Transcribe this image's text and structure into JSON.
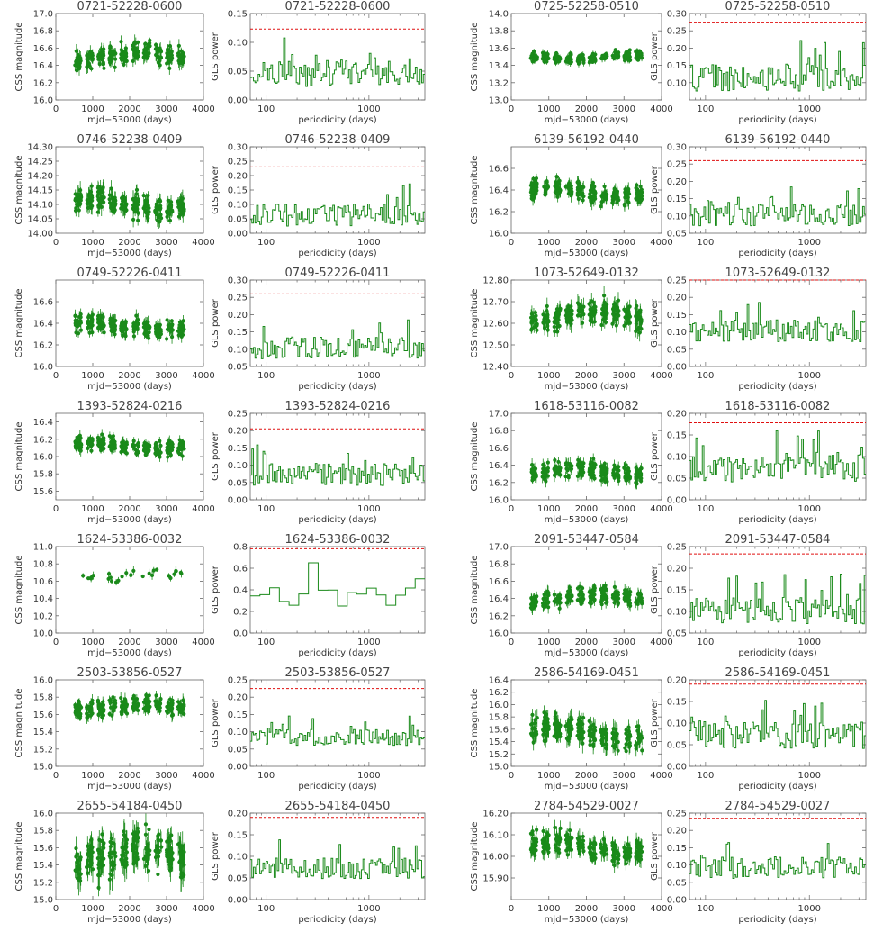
{
  "figure": {
    "lc_xlabel": "mjd−53000 (days)",
    "lc_ylabel": "CSS magnitude",
    "gls_xlabel": "periodicity (days)",
    "gls_ylabel": "GLS power",
    "data_color": "#1a8a1a",
    "threshold_color": "#e01010"
  },
  "chart_data": [
    {
      "id": "0721-52228-0600",
      "lightcurve": {
        "title": "0721-52228-0600",
        "type": "scatter",
        "xlim": [
          0,
          4000
        ],
        "xticks": [
          0,
          1000,
          2000,
          3000,
          4000
        ],
        "ylim": [
          16.0,
          17.0
        ],
        "yticks": [
          16.0,
          16.2,
          16.4,
          16.6,
          16.8,
          17.0
        ],
        "center": 16.5,
        "spread": 0.08
      },
      "periodogram": {
        "title": "0721-52228-0600",
        "type": "line",
        "xscale": "log",
        "xlim": [
          70,
          3500
        ],
        "xticks": [
          100,
          1000
        ],
        "ylim": [
          0,
          0.15
        ],
        "yticks": [
          0.0,
          0.05,
          0.1,
          0.15
        ],
        "threshold": 0.123,
        "base": 0.045,
        "amp": 0.03
      }
    },
    {
      "id": "0725-52258-0510",
      "lightcurve": {
        "title": "0725-52258-0510",
        "type": "scatter",
        "xlim": [
          0,
          4000
        ],
        "xticks": [
          0,
          1000,
          2000,
          3000,
          4000
        ],
        "ylim": [
          13.0,
          14.0
        ],
        "yticks": [
          13.0,
          13.2,
          13.4,
          13.6,
          13.8,
          14.0
        ],
        "center": 13.5,
        "spread": 0.04
      },
      "periodogram": {
        "title": "0725-52258-0510",
        "type": "line",
        "xscale": "log",
        "xlim": [
          70,
          3500
        ],
        "xticks": [
          100,
          1000
        ],
        "ylim": [
          0.05,
          0.3
        ],
        "yticks": [
          0.1,
          0.15,
          0.2,
          0.25,
          0.3
        ],
        "threshold": 0.275,
        "base": 0.11,
        "amp": 0.05
      }
    },
    {
      "id": "0746-52238-0409",
      "lightcurve": {
        "title": "0746-52238-0409",
        "type": "scatter",
        "xlim": [
          0,
          4000
        ],
        "xticks": [
          0,
          1000,
          2000,
          3000,
          4000
        ],
        "ylim": [
          14.0,
          14.3
        ],
        "yticks": [
          14.0,
          14.05,
          14.1,
          14.15,
          14.2,
          14.25,
          14.3
        ],
        "center": 14.1,
        "spread": 0.03
      },
      "periodogram": {
        "title": "0746-52238-0409",
        "type": "line",
        "xscale": "log",
        "xlim": [
          70,
          3500
        ],
        "xticks": [
          100,
          1000
        ],
        "ylim": [
          0,
          0.3
        ],
        "yticks": [
          0.0,
          0.05,
          0.1,
          0.15,
          0.2,
          0.25,
          0.3
        ],
        "threshold": 0.23,
        "base": 0.06,
        "amp": 0.05
      }
    },
    {
      "id": "6139-56192-0440",
      "lightcurve": {
        "title": "6139-56192-0440",
        "type": "scatter",
        "xlim": [
          0,
          4000
        ],
        "xticks": [
          0,
          1000,
          2000,
          3000,
          4000
        ],
        "ylim": [
          16.0,
          16.8
        ],
        "yticks": [
          16.0,
          16.2,
          16.4,
          16.6
        ],
        "center": 16.38,
        "spread": 0.06
      },
      "periodogram": {
        "title": "6139-56192-0440",
        "type": "line",
        "xscale": "log",
        "xlim": [
          70,
          3500
        ],
        "xticks": [
          100,
          1000
        ],
        "ylim": [
          0.05,
          0.3
        ],
        "yticks": [
          0.05,
          0.1,
          0.15,
          0.2,
          0.25,
          0.3
        ],
        "threshold": 0.26,
        "base": 0.1,
        "amp": 0.04
      }
    },
    {
      "id": "0749-52226-0411",
      "lightcurve": {
        "title": "0749-52226-0411",
        "type": "scatter",
        "xlim": [
          0,
          4000
        ],
        "xticks": [
          0,
          1000,
          2000,
          3000,
          4000
        ],
        "ylim": [
          16.0,
          16.8
        ],
        "yticks": [
          16.0,
          16.2,
          16.4,
          16.6
        ],
        "center": 16.37,
        "spread": 0.06
      },
      "periodogram": {
        "title": "0749-52226-0411",
        "type": "line",
        "xscale": "log",
        "xlim": [
          70,
          3500
        ],
        "xticks": [
          100,
          1000
        ],
        "ylim": [
          0.05,
          0.3
        ],
        "yticks": [
          0.05,
          0.1,
          0.15,
          0.2,
          0.25,
          0.3
        ],
        "threshold": 0.26,
        "base": 0.1,
        "amp": 0.04
      }
    },
    {
      "id": "1073-52649-0132",
      "lightcurve": {
        "title": "1073-52649-0132",
        "type": "scatter",
        "xlim": [
          0,
          4000
        ],
        "xticks": [
          0,
          1000,
          2000,
          3000,
          4000
        ],
        "ylim": [
          12.4,
          12.8
        ],
        "yticks": [
          12.4,
          12.5,
          12.6,
          12.7,
          12.8
        ],
        "center": 12.63,
        "spread": 0.04
      },
      "periodogram": {
        "title": "1073-52649-0132",
        "type": "line",
        "xscale": "log",
        "xlim": [
          70,
          3500
        ],
        "xticks": [
          100,
          1000
        ],
        "ylim": [
          0,
          0.25
        ],
        "yticks": [
          0.0,
          0.05,
          0.1,
          0.15,
          0.2,
          0.25
        ],
        "threshold": 0.25,
        "base": 0.1,
        "amp": 0.04
      }
    },
    {
      "id": "1393-52824-0216",
      "lightcurve": {
        "title": "1393-52824-0216",
        "type": "scatter",
        "xlim": [
          0,
          4000
        ],
        "xticks": [
          0,
          1000,
          2000,
          3000,
          4000
        ],
        "ylim": [
          15.5,
          16.5
        ],
        "yticks": [
          15.6,
          15.8,
          16.0,
          16.2,
          16.4
        ],
        "center": 16.12,
        "spread": 0.06
      },
      "periodogram": {
        "title": "1393-52824-0216",
        "type": "line",
        "xscale": "log",
        "xlim": [
          70,
          3500
        ],
        "xticks": [
          100,
          1000
        ],
        "ylim": [
          0,
          0.25
        ],
        "yticks": [
          0.0,
          0.05,
          0.1,
          0.15,
          0.2,
          0.25
        ],
        "threshold": 0.205,
        "base": 0.07,
        "amp": 0.04
      }
    },
    {
      "id": "1618-53116-0082",
      "lightcurve": {
        "title": "1618-53116-0082",
        "type": "scatter",
        "xlim": [
          0,
          4000
        ],
        "xticks": [
          0,
          1000,
          2000,
          3000,
          4000
        ],
        "ylim": [
          16.0,
          17.0
        ],
        "yticks": [
          16.0,
          16.2,
          16.4,
          16.6,
          16.8,
          17.0
        ],
        "center": 16.32,
        "spread": 0.07
      },
      "periodogram": {
        "title": "1618-53116-0082",
        "type": "line",
        "xscale": "log",
        "xlim": [
          70,
          3500
        ],
        "xticks": [
          100,
          1000
        ],
        "ylim": [
          0,
          0.2
        ],
        "yticks": [
          0.0,
          0.05,
          0.1,
          0.15,
          0.2
        ],
        "threshold": 0.178,
        "base": 0.07,
        "amp": 0.04
      }
    },
    {
      "id": "1624-53386-0032",
      "lightcurve": {
        "title": "1624-53386-0032",
        "type": "scatter",
        "xlim": [
          0,
          4000
        ],
        "xticks": [
          0,
          1000,
          2000,
          3000,
          4000
        ],
        "ylim": [
          10.0,
          11.0
        ],
        "yticks": [
          10.0,
          10.2,
          10.4,
          10.6,
          10.8,
          11.0
        ],
        "center": 10.66,
        "spread": 0.05,
        "sparse": true
      },
      "periodogram": {
        "title": "1624-53386-0032",
        "type": "line",
        "xscale": "log",
        "xlim": [
          70,
          3500
        ],
        "xticks": [
          100,
          1000
        ],
        "ylim": [
          0,
          0.8
        ],
        "yticks": [
          0.0,
          0.2,
          0.4,
          0.6,
          0.8
        ],
        "threshold": 0.78,
        "base": 0.32,
        "amp": 0.12,
        "coarse": true
      }
    },
    {
      "id": "2091-53447-0584",
      "lightcurve": {
        "title": "2091-53447-0584",
        "type": "scatter",
        "xlim": [
          0,
          4000
        ],
        "xticks": [
          0,
          1000,
          2000,
          3000,
          4000
        ],
        "ylim": [
          16.0,
          17.0
        ],
        "yticks": [
          16.0,
          16.2,
          16.4,
          16.6,
          16.8,
          17.0
        ],
        "center": 16.4,
        "spread": 0.07
      },
      "periodogram": {
        "title": "2091-53447-0584",
        "type": "line",
        "xscale": "log",
        "xlim": [
          70,
          3500
        ],
        "xticks": [
          100,
          1000
        ],
        "ylim": [
          0.05,
          0.25
        ],
        "yticks": [
          0.05,
          0.1,
          0.15,
          0.2,
          0.25
        ],
        "threshold": 0.233,
        "base": 0.1,
        "amp": 0.04
      }
    },
    {
      "id": "2503-53856-0527",
      "lightcurve": {
        "title": "2503-53856-0527",
        "type": "scatter",
        "xlim": [
          0,
          4000
        ],
        "xticks": [
          0,
          1000,
          2000,
          3000,
          4000
        ],
        "ylim": [
          15.0,
          16.0
        ],
        "yticks": [
          15.0,
          15.2,
          15.4,
          15.6,
          15.8,
          16.0
        ],
        "center": 15.68,
        "spread": 0.07
      },
      "periodogram": {
        "title": "2503-53856-0527",
        "type": "line",
        "xscale": "log",
        "xlim": [
          70,
          3500
        ],
        "xticks": [
          100,
          1000
        ],
        "ylim": [
          0,
          0.25
        ],
        "yticks": [
          0.0,
          0.05,
          0.1,
          0.15,
          0.2,
          0.25
        ],
        "threshold": 0.225,
        "base": 0.08,
        "amp": 0.03
      }
    },
    {
      "id": "2586-54169-0451",
      "lightcurve": {
        "title": "2586-54169-0451",
        "type": "scatter",
        "xlim": [
          0,
          4000
        ],
        "xticks": [
          0,
          1000,
          2000,
          3000,
          4000
        ],
        "ylim": [
          15.0,
          16.4
        ],
        "yticks": [
          15.0,
          15.2,
          15.4,
          15.6,
          15.8,
          16.0,
          16.2,
          16.4
        ],
        "center": 15.55,
        "spread": 0.15
      },
      "periodogram": {
        "title": "2586-54169-0451",
        "type": "line",
        "xscale": "log",
        "xlim": [
          70,
          3500
        ],
        "xticks": [
          100,
          1000
        ],
        "ylim": [
          0,
          0.2
        ],
        "yticks": [
          0.0,
          0.05,
          0.1,
          0.15,
          0.2
        ],
        "threshold": 0.19,
        "base": 0.07,
        "amp": 0.04
      }
    },
    {
      "id": "2655-54184-0450",
      "lightcurve": {
        "title": "2655-54184-0450",
        "type": "scatter",
        "xlim": [
          0,
          4000
        ],
        "xticks": [
          0,
          1000,
          2000,
          3000,
          4000
        ],
        "ylim": [
          15.0,
          16.0
        ],
        "yticks": [
          15.0,
          15.2,
          15.4,
          15.6,
          15.8,
          16.0
        ],
        "center": 15.5,
        "spread": 0.17
      },
      "periodogram": {
        "title": "2655-54184-0450",
        "type": "line",
        "xscale": "log",
        "xlim": [
          70,
          3500
        ],
        "xticks": [
          100,
          1000
        ],
        "ylim": [
          0,
          0.2
        ],
        "yticks": [
          0.0,
          0.05,
          0.1,
          0.15,
          0.2
        ],
        "threshold": 0.19,
        "base": 0.07,
        "amp": 0.03
      }
    },
    {
      "id": "2784-54529-0027",
      "lightcurve": {
        "title": "2784-54529-0027",
        "type": "scatter",
        "xlim": [
          0,
          4000
        ],
        "xticks": [
          0,
          1000,
          2000,
          3000,
          4000
        ],
        "ylim": [
          15.8,
          16.2
        ],
        "yticks": [
          15.9,
          16.0,
          16.1,
          16.2
        ],
        "center": 16.04,
        "spread": 0.04
      },
      "periodogram": {
        "title": "2784-54529-0027",
        "type": "line",
        "xscale": "log",
        "xlim": [
          70,
          3500
        ],
        "xticks": [
          100,
          1000
        ],
        "ylim": [
          0,
          0.25
        ],
        "yticks": [
          0.0,
          0.05,
          0.1,
          0.15,
          0.2,
          0.25
        ],
        "threshold": 0.235,
        "base": 0.09,
        "amp": 0.04
      }
    }
  ]
}
